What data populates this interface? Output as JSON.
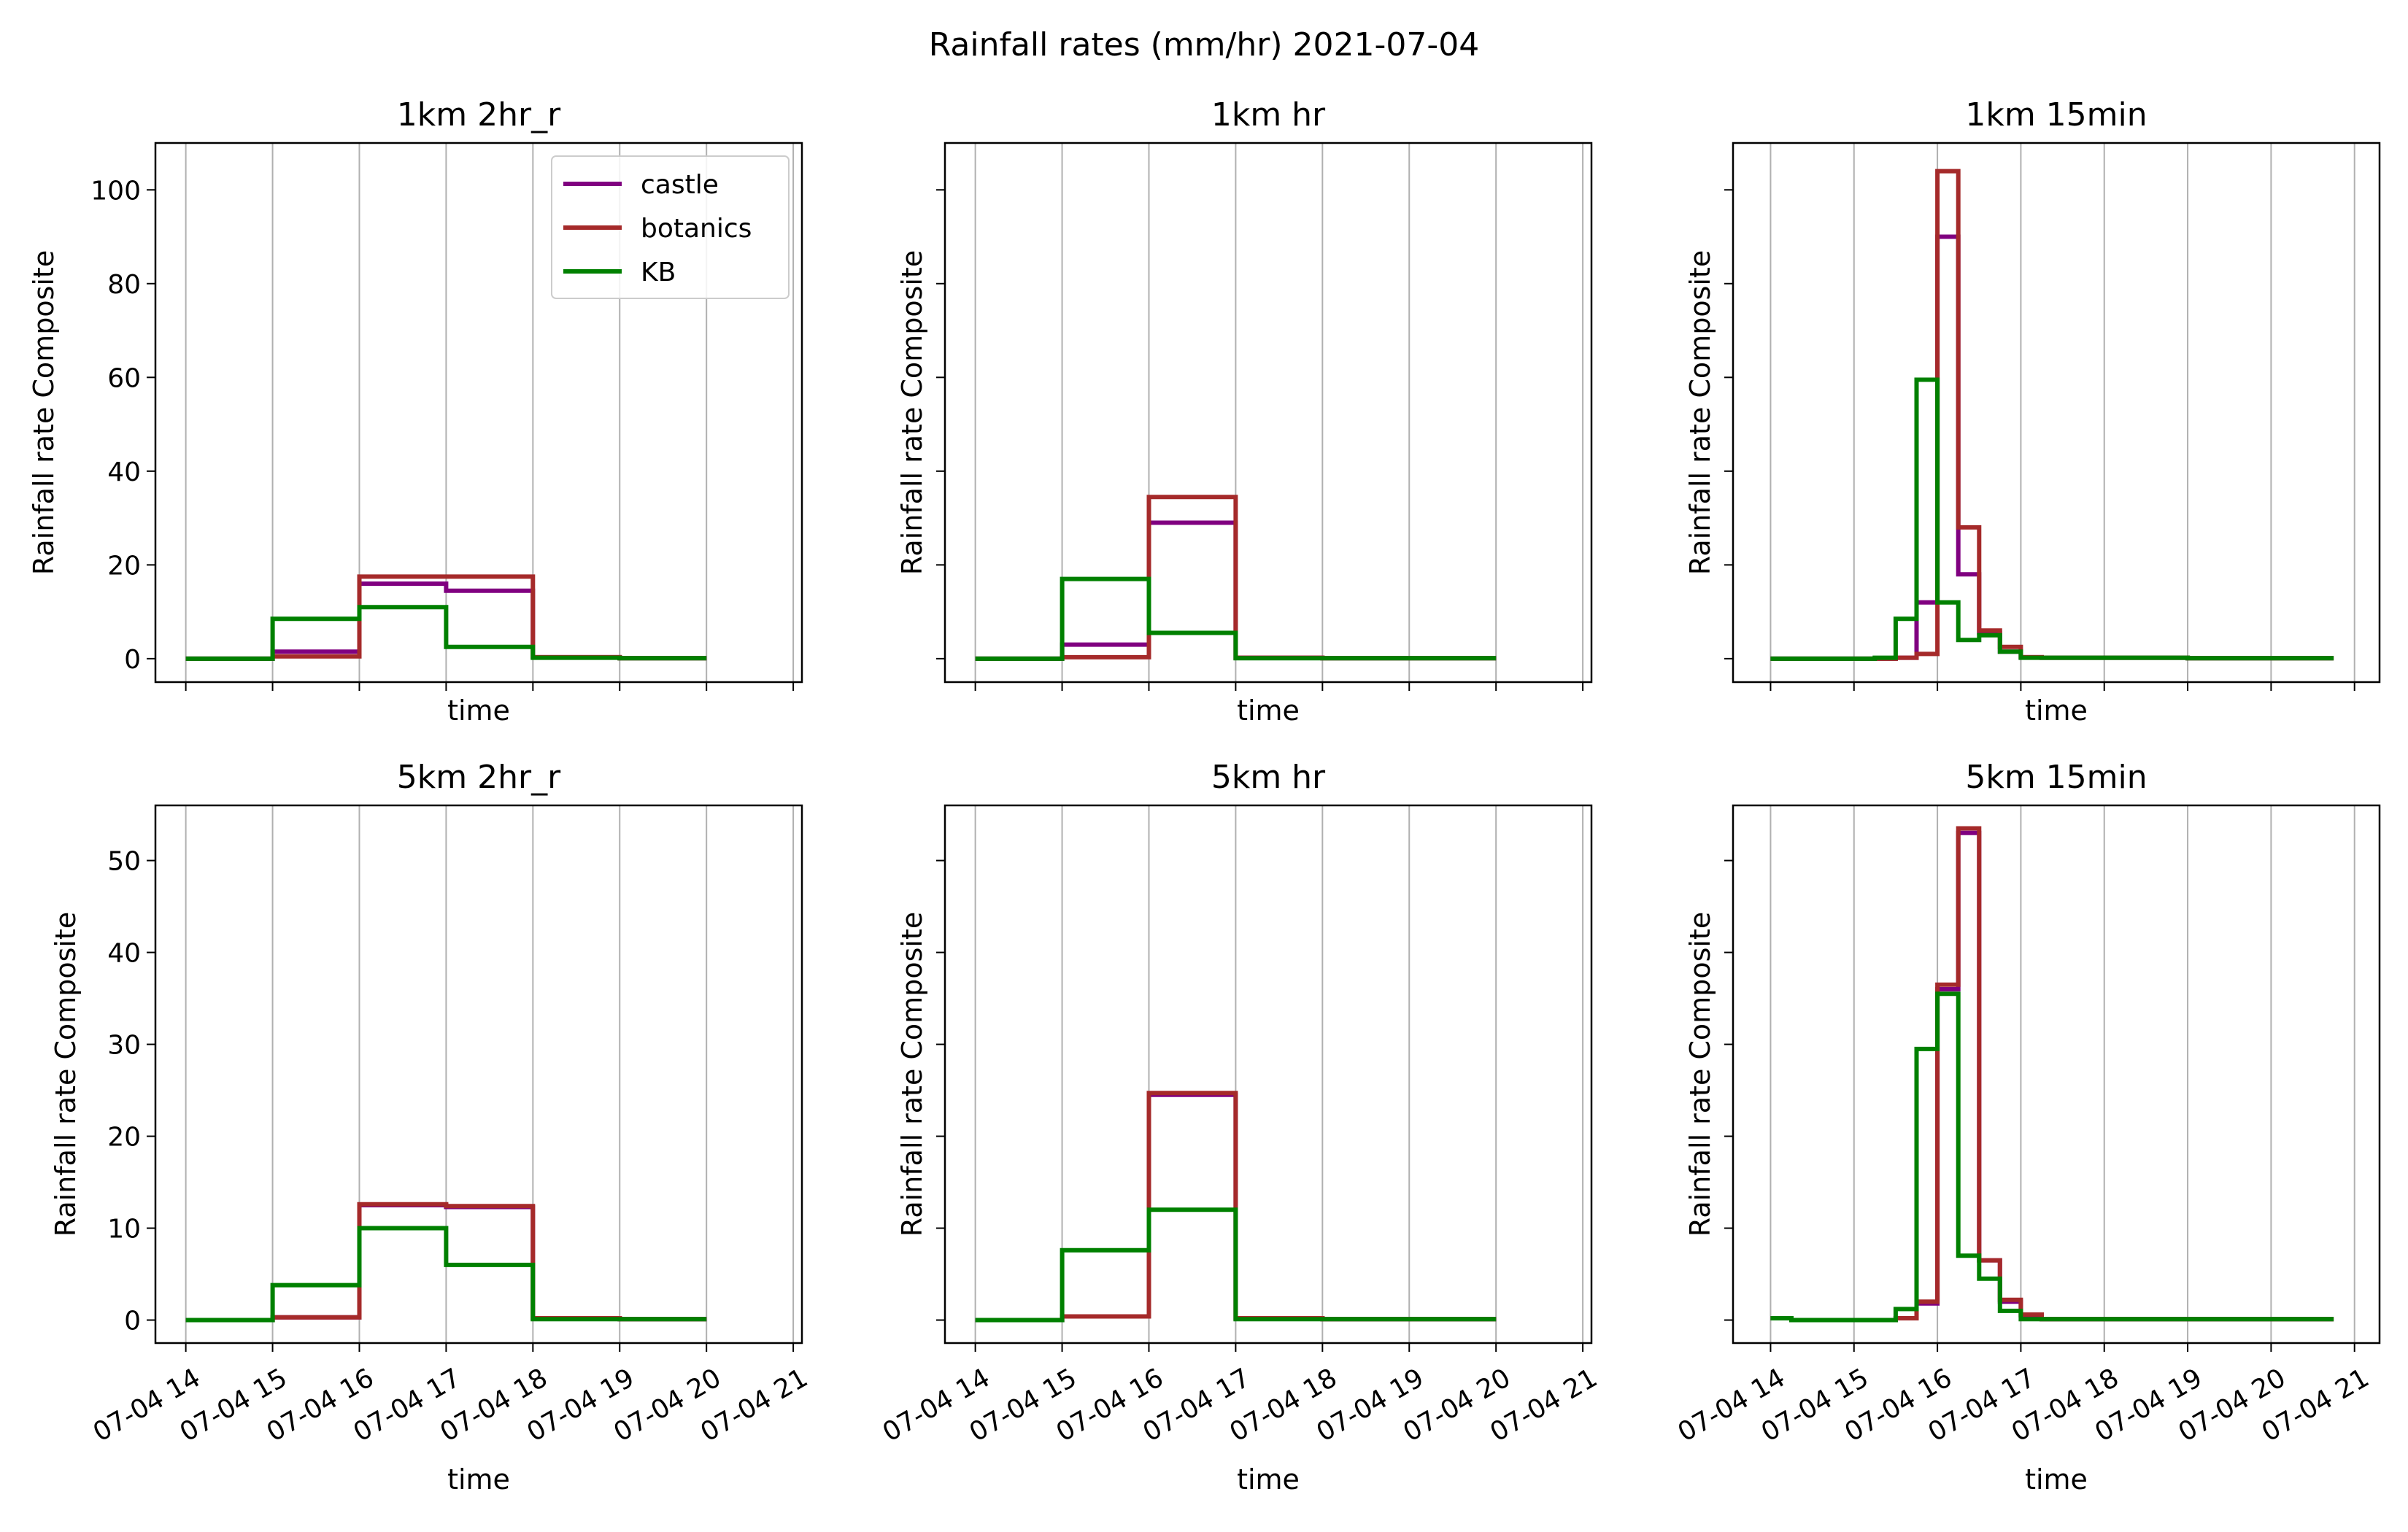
{
  "figure": {
    "suptitle": "Rainfall rates (mm/hr) 2021-07-04"
  },
  "legend": {
    "entries": [
      {
        "name": "castle",
        "color": "#800080"
      },
      {
        "name": "botanics",
        "color": "#a52a2a"
      },
      {
        "name": "KB",
        "color": "#008000"
      }
    ],
    "placement": "upper right of first panel"
  },
  "chart_data": [
    {
      "type": "line",
      "drawstyle": "steps-post",
      "title": "1km 2hr_r",
      "xlabel": "time",
      "ylabel": "Rainfall rate Composite",
      "xlim_hours": [
        13.65,
        21.1
      ],
      "ylim": [
        -5,
        110
      ],
      "yticks": [
        0,
        20,
        40,
        60,
        80,
        100
      ],
      "xticks": [
        "07-04 14",
        "07-04 15",
        "07-04 16",
        "07-04 17",
        "07-04 18",
        "07-04 19",
        "07-04 20",
        "07-04 21"
      ],
      "xtick_hours": [
        14,
        15,
        16,
        17,
        18,
        19,
        20,
        21
      ],
      "show_xticklabels": false,
      "show_yticklabels": true,
      "grid": "x",
      "series": [
        {
          "name": "castle",
          "color": "#800080",
          "x": [
            14,
            15,
            16,
            17,
            18,
            19,
            20
          ],
          "y": [
            0,
            1.5,
            16,
            14.5,
            0.3,
            0.1,
            0.1
          ]
        },
        {
          "name": "botanics",
          "color": "#a52a2a",
          "x": [
            14,
            15,
            16,
            17,
            18,
            19,
            20
          ],
          "y": [
            0,
            0.5,
            17.5,
            17.5,
            0.3,
            0.1,
            0.1
          ]
        },
        {
          "name": "KB",
          "color": "#008000",
          "x": [
            14,
            15,
            16,
            17,
            18,
            19,
            20
          ],
          "y": [
            0,
            8.5,
            11,
            2.5,
            0.2,
            0.1,
            0.1
          ]
        }
      ]
    },
    {
      "type": "line",
      "drawstyle": "steps-post",
      "title": "1km hr",
      "xlabel": "time",
      "ylabel": "Rainfall rate Composite",
      "xlim_hours": [
        13.65,
        21.1
      ],
      "ylim": [
        -5,
        110
      ],
      "yticks": [
        0,
        20,
        40,
        60,
        80,
        100
      ],
      "xticks": [
        "07-04 14",
        "07-04 15",
        "07-04 16",
        "07-04 17",
        "07-04 18",
        "07-04 19",
        "07-04 20",
        "07-04 21"
      ],
      "xtick_hours": [
        14,
        15,
        16,
        17,
        18,
        19,
        20,
        21
      ],
      "show_xticklabels": false,
      "show_yticklabels": false,
      "grid": "x",
      "series": [
        {
          "name": "castle",
          "color": "#800080",
          "x": [
            14,
            15,
            16,
            17,
            18,
            19,
            20
          ],
          "y": [
            0,
            3,
            29,
            0.2,
            0.1,
            0.1,
            0.1
          ]
        },
        {
          "name": "botanics",
          "color": "#a52a2a",
          "x": [
            14,
            15,
            16,
            17,
            18,
            19,
            20
          ],
          "y": [
            0,
            0.3,
            34.5,
            0.2,
            0.1,
            0.1,
            0.1
          ]
        },
        {
          "name": "KB",
          "color": "#008000",
          "x": [
            14,
            15,
            16,
            17,
            18,
            19,
            20
          ],
          "y": [
            0,
            17,
            5.5,
            0.1,
            0.1,
            0.1,
            0.1
          ]
        }
      ]
    },
    {
      "type": "line",
      "drawstyle": "steps-post",
      "title": "1km 15min",
      "xlabel": "time",
      "ylabel": "Rainfall rate Composite",
      "xlim_hours": [
        13.55,
        21.3
      ],
      "ylim": [
        -5,
        110
      ],
      "yticks": [
        0,
        20,
        40,
        60,
        80,
        100
      ],
      "xticks": [
        "07-04 14",
        "07-04 15",
        "07-04 16",
        "07-04 17",
        "07-04 18",
        "07-04 19",
        "07-04 20",
        "07-04 21"
      ],
      "xtick_hours": [
        14,
        15,
        16,
        17,
        18,
        19,
        20,
        21
      ],
      "show_xticklabels": false,
      "show_yticklabels": false,
      "grid": "x",
      "series": [
        {
          "name": "castle",
          "color": "#800080",
          "x": [
            14,
            15.25,
            15.5,
            15.75,
            16,
            16.25,
            16.5,
            16.75,
            17,
            17.25,
            18,
            19,
            20,
            20.75
          ],
          "y": [
            0,
            0,
            0.2,
            12,
            90,
            18,
            5.5,
            1.5,
            0.3,
            0.2,
            0.2,
            0.1,
            0.1,
            0.1
          ]
        },
        {
          "name": "botanics",
          "color": "#a52a2a",
          "x": [
            14,
            15.25,
            15.5,
            15.75,
            16,
            16.25,
            16.5,
            16.75,
            17,
            17.25,
            18,
            19,
            20,
            20.75
          ],
          "y": [
            0,
            0,
            0.2,
            1,
            104,
            28,
            6,
            2.5,
            0.3,
            0.2,
            0.2,
            0.1,
            0.1,
            0.1
          ]
        },
        {
          "name": "KB",
          "color": "#008000",
          "x": [
            14,
            15.25,
            15.5,
            15.75,
            16,
            16.25,
            16.5,
            16.75,
            17,
            17.25,
            18,
            19,
            20,
            20.75
          ],
          "y": [
            0,
            0.2,
            8.5,
            59.5,
            12,
            4,
            5,
            1.5,
            0.2,
            0.2,
            0.2,
            0.1,
            0.1,
            0.1
          ]
        }
      ]
    },
    {
      "type": "line",
      "drawstyle": "steps-post",
      "title": "5km 2hr_r",
      "xlabel": "time",
      "ylabel": "Rainfall rate Composite",
      "xlim_hours": [
        13.65,
        21.1
      ],
      "ylim": [
        -2.5,
        56
      ],
      "yticks": [
        0,
        10,
        20,
        30,
        40,
        50
      ],
      "xticks": [
        "07-04 14",
        "07-04 15",
        "07-04 16",
        "07-04 17",
        "07-04 18",
        "07-04 19",
        "07-04 20",
        "07-04 21"
      ],
      "xtick_hours": [
        14,
        15,
        16,
        17,
        18,
        19,
        20,
        21
      ],
      "show_xticklabels": true,
      "show_yticklabels": true,
      "grid": "x",
      "series": [
        {
          "name": "castle",
          "color": "#800080",
          "x": [
            14,
            15,
            16,
            17,
            18,
            19,
            20
          ],
          "y": [
            0,
            0.3,
            12.5,
            12.3,
            0.2,
            0.1,
            0.1
          ]
        },
        {
          "name": "botanics",
          "color": "#a52a2a",
          "x": [
            14,
            15,
            16,
            17,
            18,
            19,
            20
          ],
          "y": [
            0,
            0.3,
            12.6,
            12.4,
            0.2,
            0.1,
            0.1
          ]
        },
        {
          "name": "KB",
          "color": "#008000",
          "x": [
            14,
            15,
            16,
            17,
            18,
            19,
            20
          ],
          "y": [
            0,
            3.8,
            10,
            6,
            0.1,
            0.1,
            0.1
          ]
        }
      ]
    },
    {
      "type": "line",
      "drawstyle": "steps-post",
      "title": "5km hr",
      "xlabel": "time",
      "ylabel": "Rainfall rate Composite",
      "xlim_hours": [
        13.65,
        21.1
      ],
      "ylim": [
        -2.5,
        56
      ],
      "yticks": [
        0,
        10,
        20,
        30,
        40,
        50
      ],
      "xticks": [
        "07-04 14",
        "07-04 15",
        "07-04 16",
        "07-04 17",
        "07-04 18",
        "07-04 19",
        "07-04 20",
        "07-04 21"
      ],
      "xtick_hours": [
        14,
        15,
        16,
        17,
        18,
        19,
        20,
        21
      ],
      "show_xticklabels": true,
      "show_yticklabels": false,
      "grid": "x",
      "series": [
        {
          "name": "castle",
          "color": "#800080",
          "x": [
            14,
            15,
            16,
            17,
            18,
            19,
            20
          ],
          "y": [
            0,
            0.4,
            24.5,
            0.2,
            0.1,
            0.1,
            0.1
          ]
        },
        {
          "name": "botanics",
          "color": "#a52a2a",
          "x": [
            14,
            15,
            16,
            17,
            18,
            19,
            20
          ],
          "y": [
            0,
            0.4,
            24.7,
            0.2,
            0.1,
            0.1,
            0.1
          ]
        },
        {
          "name": "KB",
          "color": "#008000",
          "x": [
            14,
            15,
            16,
            17,
            18,
            19,
            20
          ],
          "y": [
            0,
            7.6,
            12,
            0.1,
            0.1,
            0.1,
            0.1
          ]
        }
      ]
    },
    {
      "type": "line",
      "drawstyle": "steps-post",
      "title": "5km 15min",
      "xlabel": "time",
      "ylabel": "Rainfall rate Composite",
      "xlim_hours": [
        13.55,
        21.3
      ],
      "ylim": [
        -2.5,
        56
      ],
      "yticks": [
        0,
        10,
        20,
        30,
        40,
        50
      ],
      "xticks": [
        "07-04 14",
        "07-04 15",
        "07-04 16",
        "07-04 17",
        "07-04 18",
        "07-04 19",
        "07-04 20",
        "07-04 21"
      ],
      "xtick_hours": [
        14,
        15,
        16,
        17,
        18,
        19,
        20,
        21
      ],
      "show_xticklabels": true,
      "show_yticklabels": false,
      "grid": "x",
      "series": [
        {
          "name": "castle",
          "color": "#800080",
          "x": [
            14,
            14.25,
            15.5,
            15.75,
            16,
            16.25,
            16.5,
            16.75,
            17,
            17.25,
            18,
            19,
            20,
            20.75
          ],
          "y": [
            0.2,
            0,
            0.2,
            1.8,
            36,
            53,
            6.5,
            2,
            0.5,
            0.1,
            0.1,
            0.1,
            0.1,
            0.1
          ]
        },
        {
          "name": "botanics",
          "color": "#a52a2a",
          "x": [
            14,
            14.25,
            15.5,
            15.75,
            16,
            16.25,
            16.5,
            16.75,
            17,
            17.25,
            18,
            19,
            20,
            20.75
          ],
          "y": [
            0.2,
            0,
            0.2,
            2,
            36.5,
            53.5,
            6.5,
            2.2,
            0.6,
            0.1,
            0.1,
            0.1,
            0.1,
            0.1
          ]
        },
        {
          "name": "KB",
          "color": "#008000",
          "x": [
            14,
            14.25,
            15.5,
            15.75,
            16,
            16.25,
            16.5,
            16.75,
            17,
            17.25,
            18,
            19,
            20,
            20.75
          ],
          "y": [
            0.2,
            0,
            1.2,
            29.5,
            35.5,
            7,
            4.5,
            1,
            0.1,
            0.1,
            0.1,
            0.1,
            0.1,
            0.1
          ]
        }
      ]
    }
  ]
}
